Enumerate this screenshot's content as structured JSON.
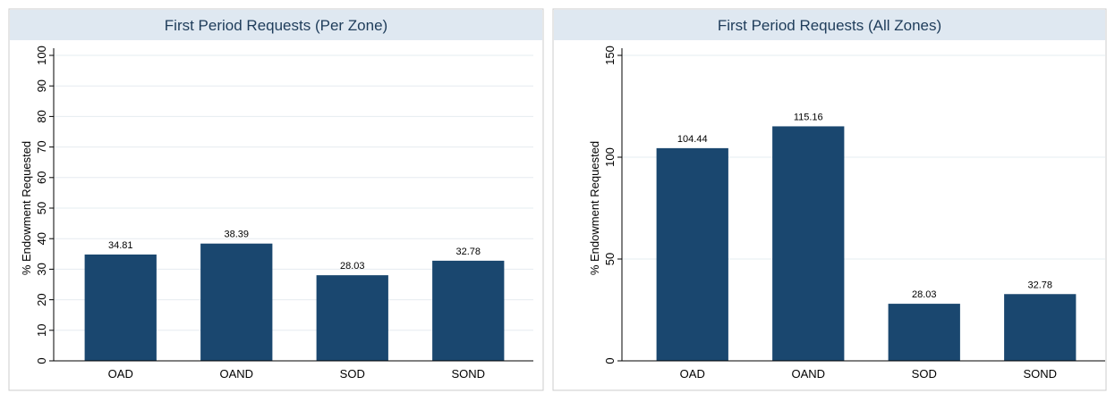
{
  "chart_data": [
    {
      "type": "bar",
      "title": "First Period Requests (Per Zone)",
      "y_label": "% Endowment Requested",
      "categories": [
        "OAD",
        "OAND",
        "SOD",
        "SOND"
      ],
      "values": [
        34.81,
        38.39,
        28.03,
        32.78
      ],
      "color": "#1a476f",
      "ylim": [
        0,
        100
      ],
      "yticks": [
        0,
        10,
        20,
        30,
        40,
        50,
        60,
        70,
        80,
        90,
        100
      ],
      "grid": true
    },
    {
      "type": "bar",
      "title": "First Period Requests (All Zones)",
      "y_label": "% Endowment Requested",
      "categories": [
        "OAD",
        "OAND",
        "SOD",
        "SOND"
      ],
      "values": [
        104.44,
        115.16,
        28.03,
        32.78
      ],
      "color": "#1a476f",
      "ylim": [
        0,
        150
      ],
      "yticks": [
        0,
        50,
        100,
        150
      ],
      "grid": true
    }
  ]
}
